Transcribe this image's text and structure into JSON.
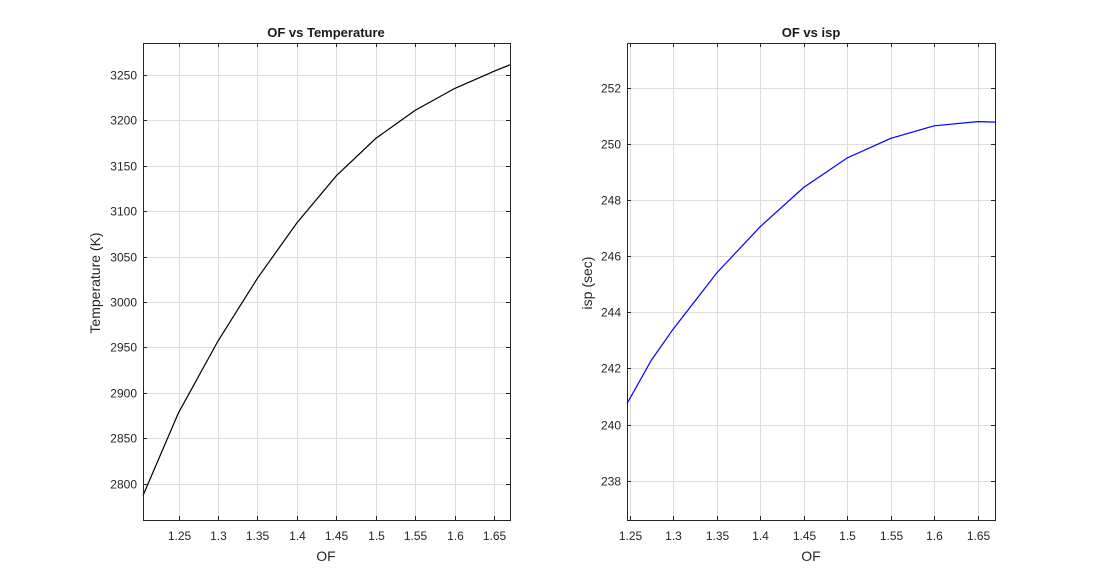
{
  "chart_data": [
    {
      "type": "line",
      "title": "OF vs Temperature",
      "xlabel": "OF",
      "ylabel": "Temperature (K)",
      "xlim": [
        1.205,
        1.67
      ],
      "ylim": [
        2760,
        3285
      ],
      "xticks": [
        1.25,
        1.3,
        1.35,
        1.4,
        1.45,
        1.5,
        1.55,
        1.6,
        1.65
      ],
      "xtick_labels": [
        "1.25",
        "1.3",
        "1.35",
        "1.4",
        "1.45",
        "1.5",
        "1.55",
        "1.6",
        "1.65"
      ],
      "yticks": [
        2800,
        2850,
        2900,
        2950,
        3000,
        3050,
        3100,
        3150,
        3200,
        3250
      ],
      "ytick_labels": [
        "2800",
        "2850",
        "2900",
        "2950",
        "3000",
        "3050",
        "3100",
        "3150",
        "3200",
        "3250"
      ],
      "grid": true,
      "line_color": "#000000",
      "series": [
        {
          "x": [
            1.205,
            1.25,
            1.3,
            1.35,
            1.4,
            1.45,
            1.5,
            1.55,
            1.6,
            1.65,
            1.67
          ],
          "y": [
            2787,
            2878,
            2957,
            3026,
            3087,
            3139,
            3180,
            3211,
            3235,
            3254,
            3261
          ]
        }
      ]
    },
    {
      "type": "line",
      "title": "OF vs isp",
      "xlabel": "OF",
      "ylabel": "isp (sec)",
      "xlim": [
        1.247,
        1.67
      ],
      "ylim": [
        236.6,
        253.6
      ],
      "xticks": [
        1.25,
        1.3,
        1.35,
        1.4,
        1.45,
        1.5,
        1.55,
        1.6,
        1.65
      ],
      "xtick_labels": [
        "1.25",
        "1.3",
        "1.35",
        "1.4",
        "1.45",
        "1.5",
        "1.55",
        "1.6",
        "1.65"
      ],
      "yticks": [
        238,
        240,
        242,
        244,
        246,
        248,
        250,
        252
      ],
      "ytick_labels": [
        "238",
        "240",
        "242",
        "244",
        "246",
        "248",
        "250",
        "252"
      ],
      "grid": true,
      "line_color": "#0000ff",
      "series": [
        {
          "x": [
            1.247,
            1.275,
            1.3,
            1.35,
            1.4,
            1.45,
            1.5,
            1.55,
            1.6,
            1.65,
            1.67
          ],
          "y": [
            240.75,
            242.3,
            243.4,
            245.4,
            247.05,
            248.45,
            249.5,
            250.2,
            250.65,
            250.8,
            250.78
          ]
        }
      ]
    }
  ]
}
